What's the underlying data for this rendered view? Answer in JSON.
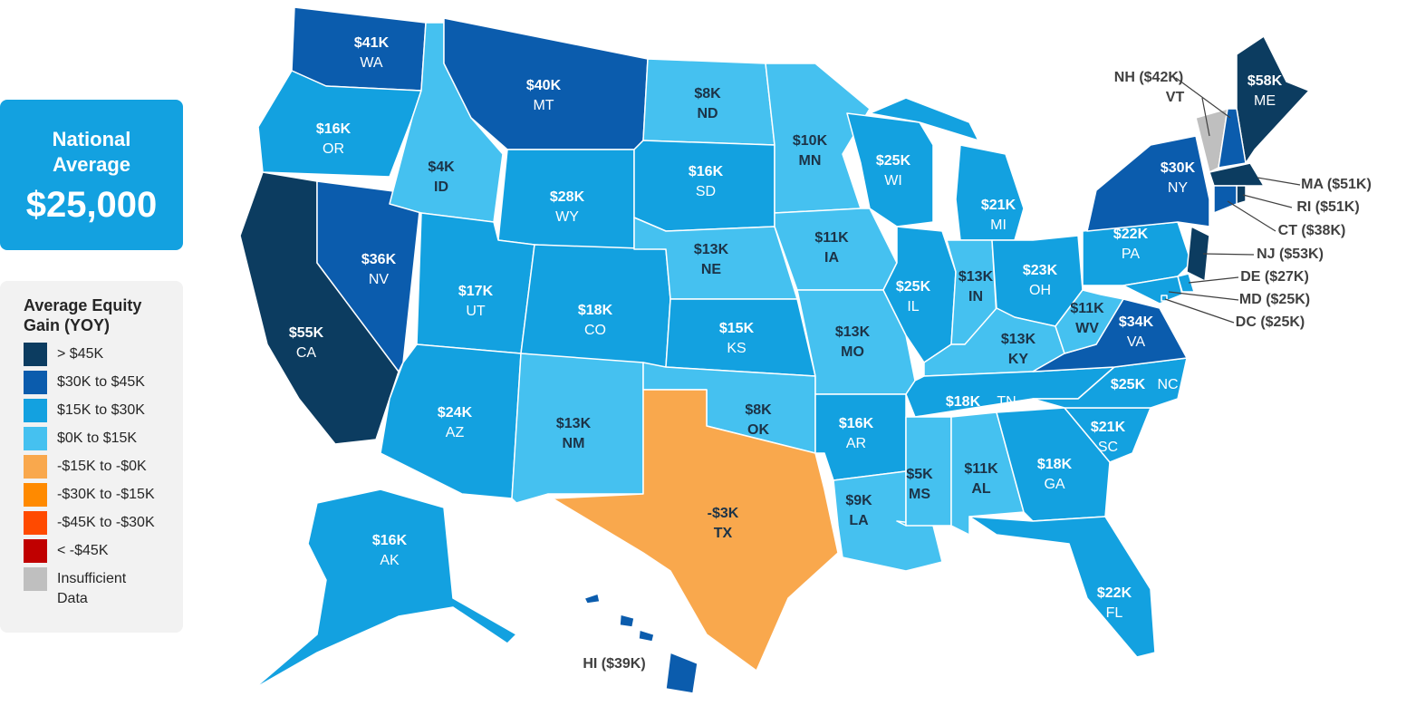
{
  "national_average": {
    "title": "National Average",
    "value": 25000,
    "value_label": "$25,000"
  },
  "legend": {
    "title": "Average Equity Gain (YOY)",
    "items": [
      {
        "label": "> $45K",
        "color": "#0c3c60"
      },
      {
        "label": "$30K to $45K",
        "color": "#0b5cad"
      },
      {
        "label": "$15K to $30K",
        "color": "#13a1e0"
      },
      {
        "label": "$0K to $15K",
        "color": "#45c1f0"
      },
      {
        "label": "-$15K to -$0K",
        "color": "#f9a84d"
      },
      {
        "label": "-$30K to -$15K",
        "color": "#ff8a00"
      },
      {
        "label": "-$45K to -$30K",
        "color": "#ff4a00"
      },
      {
        "label": "< -$45K",
        "color": "#c00000"
      },
      {
        "label": "Insufficient Data",
        "color": "#bfbfbf"
      }
    ]
  },
  "states": [
    {
      "abbr": "WA",
      "value": 41,
      "value_label": "$41K",
      "color": "#0b5cad"
    },
    {
      "abbr": "OR",
      "value": 16,
      "value_label": "$16K",
      "color": "#13a1e0"
    },
    {
      "abbr": "CA",
      "value": 55,
      "value_label": "$55K",
      "color": "#0c3c60"
    },
    {
      "abbr": "NV",
      "value": 36,
      "value_label": "$36K",
      "color": "#0b5cad"
    },
    {
      "abbr": "ID",
      "value": 4,
      "value_label": "$4K",
      "color": "#45c1f0"
    },
    {
      "abbr": "MT",
      "value": 40,
      "value_label": "$40K",
      "color": "#0b5cad"
    },
    {
      "abbr": "WY",
      "value": 28,
      "value_label": "$28K",
      "color": "#13a1e0"
    },
    {
      "abbr": "UT",
      "value": 17,
      "value_label": "$17K",
      "color": "#13a1e0"
    },
    {
      "abbr": "AZ",
      "value": 24,
      "value_label": "$24K",
      "color": "#13a1e0"
    },
    {
      "abbr": "CO",
      "value": 18,
      "value_label": "$18K",
      "color": "#13a1e0"
    },
    {
      "abbr": "NM",
      "value": 13,
      "value_label": "$13K",
      "color": "#45c1f0"
    },
    {
      "abbr": "ND",
      "value": 8,
      "value_label": "$8K",
      "color": "#45c1f0"
    },
    {
      "abbr": "SD",
      "value": 16,
      "value_label": "$16K",
      "color": "#13a1e0"
    },
    {
      "abbr": "NE",
      "value": 13,
      "value_label": "$13K",
      "color": "#45c1f0"
    },
    {
      "abbr": "KS",
      "value": 15,
      "value_label": "$15K",
      "color": "#13a1e0"
    },
    {
      "abbr": "OK",
      "value": 8,
      "value_label": "$8K",
      "color": "#45c1f0"
    },
    {
      "abbr": "TX",
      "value": -3,
      "value_label": "-$3K",
      "color": "#f9a84d"
    },
    {
      "abbr": "MN",
      "value": 10,
      "value_label": "$10K",
      "color": "#45c1f0"
    },
    {
      "abbr": "IA",
      "value": 11,
      "value_label": "$11K",
      "color": "#45c1f0"
    },
    {
      "abbr": "MO",
      "value": 13,
      "value_label": "$13K",
      "color": "#45c1f0"
    },
    {
      "abbr": "AR",
      "value": 16,
      "value_label": "$16K",
      "color": "#13a1e0"
    },
    {
      "abbr": "LA",
      "value": 9,
      "value_label": "$9K",
      "color": "#45c1f0"
    },
    {
      "abbr": "WI",
      "value": 25,
      "value_label": "$25K",
      "color": "#13a1e0"
    },
    {
      "abbr": "IL",
      "value": 25,
      "value_label": "$25K",
      "color": "#13a1e0"
    },
    {
      "abbr": "MI",
      "value": 21,
      "value_label": "$21K",
      "color": "#13a1e0"
    },
    {
      "abbr": "IN",
      "value": 13,
      "value_label": "$13K",
      "color": "#45c1f0"
    },
    {
      "abbr": "OH",
      "value": 23,
      "value_label": "$23K",
      "color": "#13a1e0"
    },
    {
      "abbr": "KY",
      "value": 13,
      "value_label": "$13K",
      "color": "#45c1f0"
    },
    {
      "abbr": "TN",
      "value": 18,
      "value_label": "$18K",
      "color": "#13a1e0"
    },
    {
      "abbr": "MS",
      "value": 5,
      "value_label": "$5K",
      "color": "#45c1f0"
    },
    {
      "abbr": "AL",
      "value": 11,
      "value_label": "$11K",
      "color": "#45c1f0"
    },
    {
      "abbr": "GA",
      "value": 18,
      "value_label": "$18K",
      "color": "#13a1e0"
    },
    {
      "abbr": "FL",
      "value": 22,
      "value_label": "$22K",
      "color": "#13a1e0"
    },
    {
      "abbr": "SC",
      "value": 21,
      "value_label": "$21K",
      "color": "#13a1e0"
    },
    {
      "abbr": "NC",
      "value": 25,
      "value_label": "$25K",
      "color": "#13a1e0"
    },
    {
      "abbr": "VA",
      "value": 34,
      "value_label": "$34K",
      "color": "#0b5cad"
    },
    {
      "abbr": "WV",
      "value": 11,
      "value_label": "$11K",
      "color": "#45c1f0"
    },
    {
      "abbr": "PA",
      "value": 22,
      "value_label": "$22K",
      "color": "#13a1e0"
    },
    {
      "abbr": "NY",
      "value": 30,
      "value_label": "$30K",
      "color": "#0b5cad"
    },
    {
      "abbr": "ME",
      "value": 58,
      "value_label": "$58K",
      "color": "#0c3c60"
    },
    {
      "abbr": "AK",
      "value": 16,
      "value_label": "$16K",
      "color": "#13a1e0"
    },
    {
      "abbr": "VT",
      "value": null,
      "color": "#bfbfbf"
    },
    {
      "value": 42,
      "value_label": "NH ($42K)",
      "color": "#0b5cad"
    },
    {
      "value": 51,
      "value_label": "MA ($51K)",
      "color": "#0c3c60"
    },
    {
      "value": 51,
      "value_label": "RI ($51K)",
      "color": "#0c3c60"
    },
    {
      "value": 38,
      "value_label": "CT ($38K)",
      "color": "#0b5cad"
    },
    {
      "value": 53,
      "value_label": "NJ  ($53K)",
      "color": "#0c3c60"
    },
    {
      "value": 27,
      "value_label": "DE ($27K)",
      "color": "#13a1e0"
    },
    {
      "value": 25,
      "value_label": "MD ($25K)",
      "color": "#13a1e0"
    },
    {
      "value": 25,
      "value_label": "DC ($25K)",
      "color": "#13a1e0"
    },
    {
      "value": 39,
      "value_label": "HI ($39K)",
      "color": "#0b5cad"
    }
  ]
}
